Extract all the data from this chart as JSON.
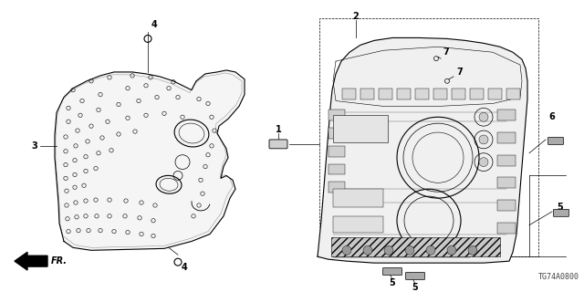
{
  "bg_color": "#ffffff",
  "line_color": "#000000",
  "diagram_code": "TG74A0800",
  "fr_label": "FR.",
  "figsize": [
    6.4,
    3.2
  ],
  "dpi": 100
}
